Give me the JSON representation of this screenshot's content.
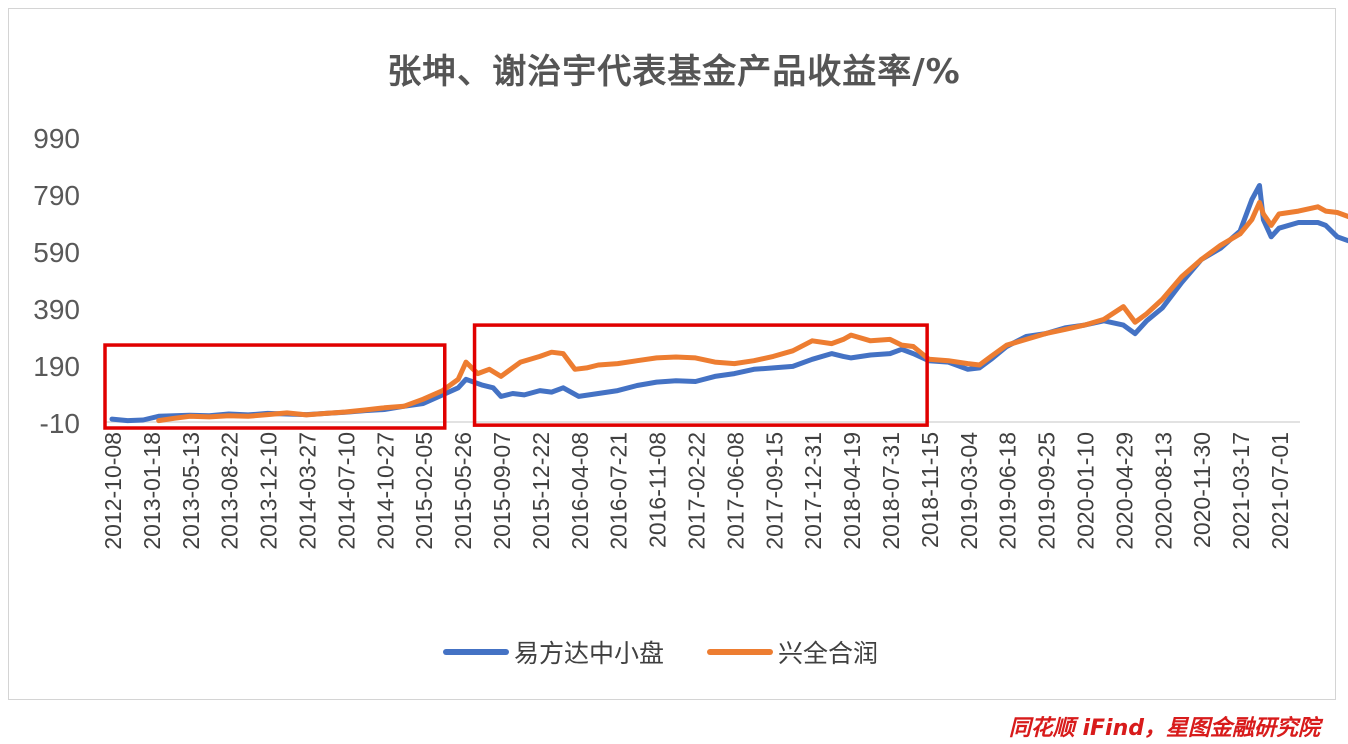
{
  "chart_data": {
    "type": "line",
    "title": "张坤、谢治宇代表基金产品收益率/%",
    "xlabel": "",
    "ylabel": "",
    "ylim": [
      -10,
      990
    ],
    "yticks": [
      "-10",
      "190",
      "390",
      "590",
      "790",
      "990"
    ],
    "x_tick_labels": [
      "2012-10-08",
      "2013-01-18",
      "2013-05-13",
      "2013-08-22",
      "2013-12-10",
      "2014-03-27",
      "2014-07-10",
      "2014-10-27",
      "2015-02-05",
      "2015-05-26",
      "2015-09-07",
      "2015-12-22",
      "2016-04-08",
      "2016-07-21",
      "2016-11-08",
      "2017-02-22",
      "2017-06-08",
      "2017-09-15",
      "2017-12-31",
      "2018-04-19",
      "2018-07-31",
      "2018-11-15",
      "2019-03-04",
      "2019-06-18",
      "2019-09-25",
      "2020-01-10",
      "2020-04-29",
      "2020-08-13",
      "2020-11-30",
      "2021-03-17",
      "2021-07-01"
    ],
    "legend_position": "bottom",
    "grid": false,
    "series": [
      {
        "name": "易方达中小盘",
        "color": "#4472c4",
        "points": [
          [
            0,
            0
          ],
          [
            0.4,
            -5
          ],
          [
            0.8,
            -3
          ],
          [
            1.2,
            10
          ],
          [
            1.6,
            12
          ],
          [
            2,
            14
          ],
          [
            2.5,
            12
          ],
          [
            3,
            18
          ],
          [
            3.5,
            15
          ],
          [
            4,
            20
          ],
          [
            4.5,
            18
          ],
          [
            5,
            16
          ],
          [
            5.5,
            20
          ],
          [
            6,
            24
          ],
          [
            6.5,
            30
          ],
          [
            7,
            34
          ],
          [
            7.5,
            45
          ],
          [
            8,
            55
          ],
          [
            8.5,
            85
          ],
          [
            8.9,
            110
          ],
          [
            9.1,
            140
          ],
          [
            9.5,
            120
          ],
          [
            9.8,
            110
          ],
          [
            10,
            80
          ],
          [
            10.3,
            90
          ],
          [
            10.6,
            85
          ],
          [
            11,
            100
          ],
          [
            11.3,
            95
          ],
          [
            11.6,
            110
          ],
          [
            12,
            80
          ],
          [
            12.5,
            90
          ],
          [
            13,
            100
          ],
          [
            13.5,
            118
          ],
          [
            14,
            130
          ],
          [
            14.5,
            135
          ],
          [
            15,
            132
          ],
          [
            15.5,
            150
          ],
          [
            16,
            160
          ],
          [
            16.5,
            175
          ],
          [
            17,
            180
          ],
          [
            17.5,
            185
          ],
          [
            18,
            210
          ],
          [
            18.5,
            230
          ],
          [
            18.8,
            220
          ],
          [
            19,
            215
          ],
          [
            19.5,
            225
          ],
          [
            20,
            230
          ],
          [
            20.3,
            245
          ],
          [
            20.6,
            230
          ],
          [
            21,
            205
          ],
          [
            21.5,
            200
          ],
          [
            22,
            175
          ],
          [
            22.3,
            180
          ],
          [
            22.6,
            210
          ],
          [
            23,
            255
          ],
          [
            23.5,
            290
          ],
          [
            24,
            300
          ],
          [
            24.5,
            320
          ],
          [
            25,
            330
          ],
          [
            25.5,
            345
          ],
          [
            26,
            330
          ],
          [
            26.3,
            300
          ],
          [
            26.6,
            345
          ],
          [
            27,
            390
          ],
          [
            27.5,
            480
          ],
          [
            28,
            560
          ],
          [
            28.5,
            600
          ],
          [
            29,
            660
          ],
          [
            29.3,
            770
          ],
          [
            29.5,
            820
          ],
          [
            29.6,
            700
          ],
          [
            29.8,
            640
          ],
          [
            30,
            670
          ],
          [
            30.5,
            690
          ],
          [
            31,
            690
          ],
          [
            31.2,
            680
          ],
          [
            31.5,
            640
          ],
          [
            31.8,
            625
          ],
          [
            32,
            620
          ]
        ]
      },
      {
        "name": "兴全合润",
        "color": "#ed7d31",
        "points": [
          [
            1.2,
            -5
          ],
          [
            1.6,
            3
          ],
          [
            2,
            10
          ],
          [
            2.5,
            8
          ],
          [
            3,
            12
          ],
          [
            3.5,
            10
          ],
          [
            4,
            16
          ],
          [
            4.5,
            22
          ],
          [
            5,
            15
          ],
          [
            5.5,
            20
          ],
          [
            6,
            25
          ],
          [
            6.5,
            32
          ],
          [
            7,
            40
          ],
          [
            7.5,
            45
          ],
          [
            8,
            70
          ],
          [
            8.5,
            100
          ],
          [
            8.9,
            140
          ],
          [
            9.1,
            200
          ],
          [
            9.4,
            160
          ],
          [
            9.7,
            175
          ],
          [
            10,
            150
          ],
          [
            10.5,
            200
          ],
          [
            11,
            220
          ],
          [
            11.3,
            235
          ],
          [
            11.6,
            230
          ],
          [
            11.9,
            175
          ],
          [
            12.2,
            180
          ],
          [
            12.5,
            190
          ],
          [
            13,
            195
          ],
          [
            13.5,
            205
          ],
          [
            14,
            215
          ],
          [
            14.5,
            218
          ],
          [
            15,
            215
          ],
          [
            15.5,
            200
          ],
          [
            16,
            195
          ],
          [
            16.5,
            205
          ],
          [
            17,
            220
          ],
          [
            17.5,
            240
          ],
          [
            18,
            275
          ],
          [
            18.5,
            265
          ],
          [
            18.8,
            280
          ],
          [
            19,
            295
          ],
          [
            19.5,
            275
          ],
          [
            20,
            280
          ],
          [
            20.3,
            260
          ],
          [
            20.6,
            255
          ],
          [
            21,
            210
          ],
          [
            21.5,
            205
          ],
          [
            22,
            195
          ],
          [
            22.3,
            190
          ],
          [
            22.6,
            220
          ],
          [
            23,
            260
          ],
          [
            23.5,
            280
          ],
          [
            24,
            300
          ],
          [
            24.5,
            315
          ],
          [
            25,
            330
          ],
          [
            25.5,
            350
          ],
          [
            26,
            395
          ],
          [
            26.3,
            340
          ],
          [
            26.6,
            370
          ],
          [
            27,
            420
          ],
          [
            27.5,
            500
          ],
          [
            28,
            560
          ],
          [
            28.5,
            610
          ],
          [
            29,
            650
          ],
          [
            29.3,
            700
          ],
          [
            29.5,
            760
          ],
          [
            29.6,
            720
          ],
          [
            29.8,
            680
          ],
          [
            30,
            720
          ],
          [
            30.5,
            730
          ],
          [
            31,
            745
          ],
          [
            31.2,
            730
          ],
          [
            31.5,
            725
          ],
          [
            31.8,
            710
          ],
          [
            32,
            700
          ]
        ]
      }
    ],
    "annotations": [
      {
        "shape": "rect",
        "x_from": 0,
        "x_to": 8.4,
        "y_from": -10,
        "y_to": 260,
        "color": "#e00000"
      },
      {
        "shape": "rect",
        "x_from": 9.5,
        "x_to": 20.8,
        "y_from": 0,
        "y_to": 330,
        "color": "#e00000"
      }
    ]
  },
  "source_note": "同花顺 iFind，星图金融研究院"
}
